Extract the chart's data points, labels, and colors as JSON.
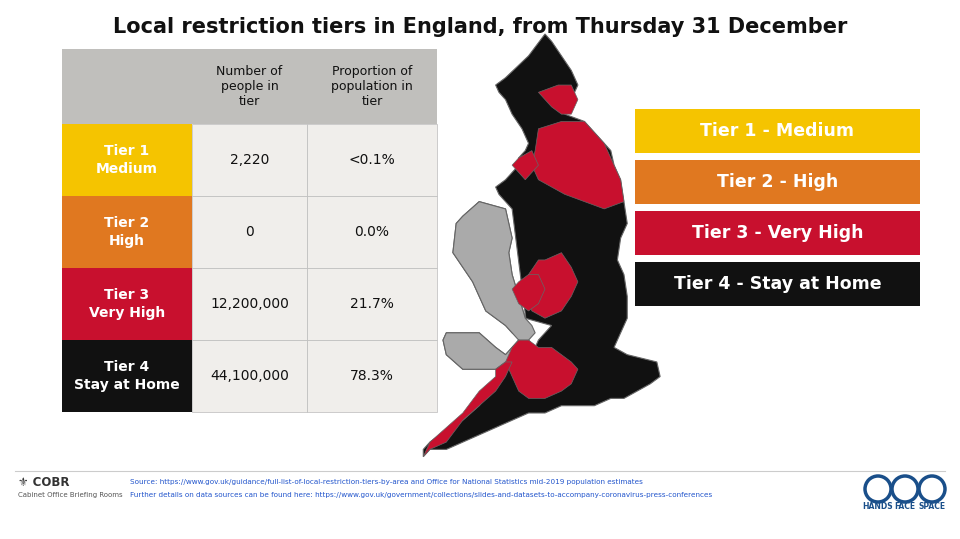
{
  "title": "Local restriction tiers in England, from Thursday 31 December",
  "title_fontsize": 15,
  "background_color": "#ffffff",
  "table": {
    "col_headers": [
      "",
      "Number of\npeople in\ntier",
      "Proportion of\npopulation in\ntier"
    ],
    "rows": [
      {
        "label": "Tier 1\nMedium",
        "color": "#F5C400",
        "people": "2,220",
        "proportion": "<0.1%"
      },
      {
        "label": "Tier 2\nHigh",
        "color": "#E07820",
        "people": "0",
        "proportion": "0.0%"
      },
      {
        "label": "Tier 3\nVery High",
        "color": "#C8102E",
        "people": "12,200,000",
        "proportion": "21.7%"
      },
      {
        "label": "Tier 4\nStay at Home",
        "color": "#111111",
        "people": "44,100,000",
        "proportion": "78.3%"
      }
    ],
    "header_bg": "#c0bfbc",
    "row_bg": "#f0eeeb"
  },
  "legend": [
    {
      "label": "Tier 1 - Medium",
      "color": "#F5C400"
    },
    {
      "label": "Tier 2 - High",
      "color": "#E07820"
    },
    {
      "label": "Tier 3 - Very High",
      "color": "#C8102E"
    },
    {
      "label": "Tier 4 - Stay at Home",
      "color": "#111111"
    }
  ],
  "tier3_color": "#C8102E",
  "tier4_color": "#111111",
  "wales_color": "#aaaaaa",
  "map_edge_color": "#666666",
  "footer_source1": "Source: https://www.gov.uk/guidance/full-list-of-local-restriction-tiers-by-area and Office for National Statistics mid-2019 population estimates",
  "footer_source2": "Further details on data sources can be found here: https://www.gov.uk/government/collections/slides-and-datasets-to-accompany-coronavirus-press-conferences"
}
